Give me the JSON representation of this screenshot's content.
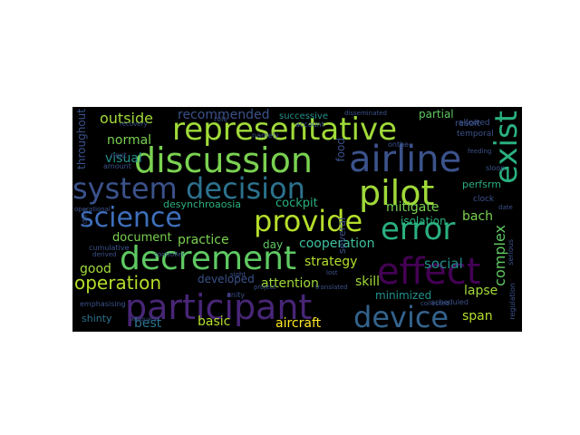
{
  "palette": {
    "yellow": "#fde725",
    "lightgreen": "#a0da39",
    "green": "#5ec962",
    "teal": "#21918c",
    "cyan": "#2ab07f",
    "blue": "#3b528b",
    "indigo": "#414487",
    "purple": "#440154"
  },
  "words": [
    {
      "text": "representative",
      "color": "#a0da39"
    },
    {
      "text": "discussion",
      "color": "#7ad151"
    },
    {
      "text": "airline",
      "color": "#3b528b"
    },
    {
      "text": "decision",
      "color": "#2c728e"
    },
    {
      "text": "pilot",
      "color": "#a0da39"
    },
    {
      "text": "system",
      "color": "#3b528b"
    },
    {
      "text": "science",
      "color": "#3e6fbc"
    },
    {
      "text": "provide",
      "color": "#b5de2b"
    },
    {
      "text": "error",
      "color": "#2ab07f"
    },
    {
      "text": "exist",
      "color": "#2ab07f"
    },
    {
      "text": "decrement",
      "color": "#5ec962"
    },
    {
      "text": "effect",
      "color": "#440154"
    },
    {
      "text": "participant",
      "color": "#482677"
    },
    {
      "text": "device",
      "color": "#33638d"
    },
    {
      "text": "operation",
      "color": "#b5de2b"
    },
    {
      "text": "outside",
      "color": "#a0da39"
    },
    {
      "text": "recommended",
      "color": "#3b528b"
    },
    {
      "text": "successive",
      "color": "#21918c"
    },
    {
      "text": "partial",
      "color": "#5ec962"
    },
    {
      "text": "normal",
      "color": "#7ad151"
    },
    {
      "text": "visual",
      "color": "#21918c"
    },
    {
      "text": "food",
      "color": "#3b528b"
    },
    {
      "text": "desynchroaosia",
      "color": "#2ab07f"
    },
    {
      "text": "mitigate",
      "color": "#7ad151"
    },
    {
      "text": "cockpit",
      "color": "#2ab07f"
    },
    {
      "text": "isolation",
      "color": "#2ab07f"
    },
    {
      "text": "bach",
      "color": "#7ad151"
    },
    {
      "text": "document",
      "color": "#7ad151"
    },
    {
      "text": "practice",
      "color": "#7ad151"
    },
    {
      "text": "day",
      "color": "#5ec962"
    },
    {
      "text": "cooperation",
      "color": "#3ec0a0"
    },
    {
      "text": "complex",
      "color": "#5ec962"
    },
    {
      "text": "good",
      "color": "#a0da39"
    },
    {
      "text": "strategy",
      "color": "#b5de2b"
    },
    {
      "text": "social",
      "color": "#21918c"
    },
    {
      "text": "skill",
      "color": "#a0da39"
    },
    {
      "text": "attention",
      "color": "#a0da39"
    },
    {
      "text": "lapse",
      "color": "#a0da39"
    },
    {
      "text": "developed",
      "color": "#3b528b"
    },
    {
      "text": "minimized",
      "color": "#21918c"
    },
    {
      "text": "shinty",
      "color": "#2c728e"
    },
    {
      "text": "best",
      "color": "#2c728e"
    },
    {
      "text": "basic",
      "color": "#b5de2b"
    },
    {
      "text": "aircraft",
      "color": "#fde725"
    },
    {
      "text": "span",
      "color": "#b5de2b"
    },
    {
      "text": "throughout",
      "color": "#3b528b"
    },
    {
      "text": "several",
      "color": "#3b528b"
    },
    {
      "text": "perfsrm",
      "color": "#2ab07f"
    },
    {
      "text": "resolt",
      "color": "#3b528b"
    },
    {
      "text": "temporal",
      "color": "#3b528b"
    },
    {
      "text": "allowed",
      "color": "#3b528b"
    },
    {
      "text": "clock",
      "color": "#3b528b"
    },
    {
      "text": "anity",
      "color": "#3b528b"
    },
    {
      "text": "emphasising",
      "color": "#3b528b"
    },
    {
      "text": "scheduled",
      "color": "#3b528b"
    },
    {
      "text": "regulation",
      "color": "#3b528b"
    },
    {
      "text": "serious",
      "color": "#3b528b"
    },
    {
      "text": "next",
      "color": "#3b528b"
    },
    {
      "text": "amount",
      "color": "#3b528b"
    },
    {
      "text": "cumulative",
      "color": "#3b528b"
    },
    {
      "text": "operational",
      "color": "#3b528b"
    },
    {
      "text": "tdms",
      "color": "#3b528b"
    },
    {
      "text": "role",
      "color": "#3b528b"
    },
    {
      "text": "namely",
      "color": "#3b528b"
    },
    {
      "text": "account",
      "color": "#3b528b"
    },
    {
      "text": "onthe",
      "color": "#3b528b"
    },
    {
      "text": "recovery",
      "color": "#3b528b"
    },
    {
      "text": "collected",
      "color": "#3b528b"
    },
    {
      "text": "disseminated",
      "color": "#3b528b"
    },
    {
      "text": "translated",
      "color": "#3b528b"
    },
    {
      "text": "sloop",
      "color": "#3b528b"
    },
    {
      "text": "date",
      "color": "#3b528b"
    },
    {
      "text": "lost",
      "color": "#3b528b"
    },
    {
      "text": "derived",
      "color": "#3b528b"
    },
    {
      "text": "sight",
      "color": "#3b528b"
    },
    {
      "text": "project",
      "color": "#3b528b"
    },
    {
      "text": "feeding",
      "color": "#3b528b"
    },
    {
      "text": "controller",
      "color": "#3b528b"
    },
    {
      "text": "adequacy",
      "color": "#3b528b"
    }
  ]
}
